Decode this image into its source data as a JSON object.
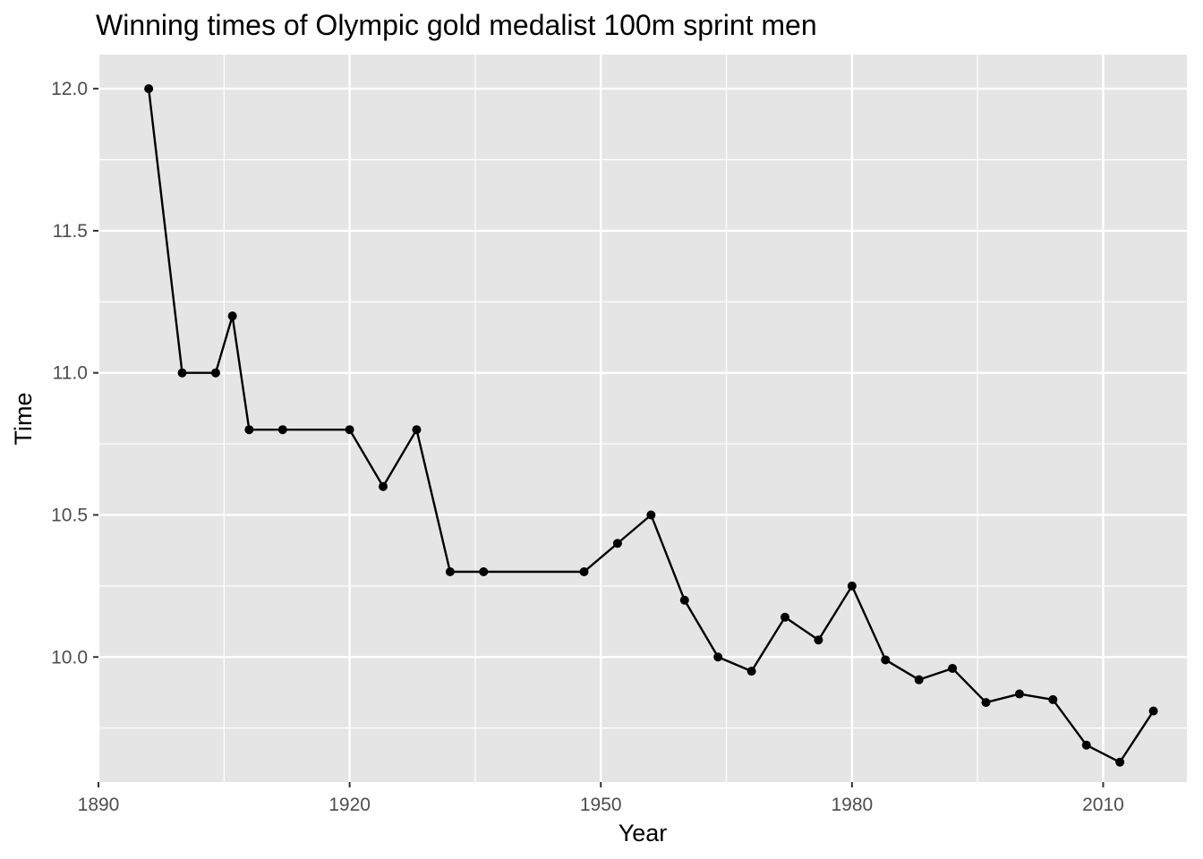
{
  "chart_data": {
    "type": "line",
    "title": "Winning times of Olympic gold medalist 100m sprint men",
    "xlabel": "Year",
    "ylabel": "Time",
    "xlim": [
      1890,
      2020
    ],
    "ylim": [
      9.56,
      12.12
    ],
    "x_ticks": [
      1890,
      1920,
      1950,
      1980,
      2010
    ],
    "x_tick_labels": [
      "1890",
      "1920",
      "1950",
      "1980",
      "2010"
    ],
    "y_ticks": [
      10.0,
      10.5,
      11.0,
      11.5,
      12.0
    ],
    "y_tick_labels": [
      "10.0",
      "10.5",
      "11.0",
      "11.5",
      "12.0"
    ],
    "grid": true,
    "background": "#e5e5e5",
    "grid_color": "#ffffff",
    "line_color": "#000000",
    "point_color": "#000000",
    "series": [
      {
        "x": [
          1896,
          1900,
          1904,
          1906,
          1908,
          1912,
          1920,
          1924,
          1928,
          1932,
          1936,
          1948,
          1952,
          1956,
          1960,
          1964,
          1968,
          1972,
          1976,
          1980,
          1984,
          1988,
          1992,
          1996,
          2000,
          2004,
          2008,
          2012,
          2016
        ],
        "values": [
          12.0,
          11.0,
          11.0,
          11.2,
          10.8,
          10.8,
          10.8,
          10.6,
          10.8,
          10.3,
          10.3,
          10.3,
          10.4,
          10.5,
          10.2,
          10.0,
          9.95,
          10.14,
          10.06,
          10.25,
          9.99,
          9.92,
          9.96,
          9.84,
          9.87,
          9.85,
          9.69,
          9.63,
          9.81
        ]
      }
    ]
  }
}
